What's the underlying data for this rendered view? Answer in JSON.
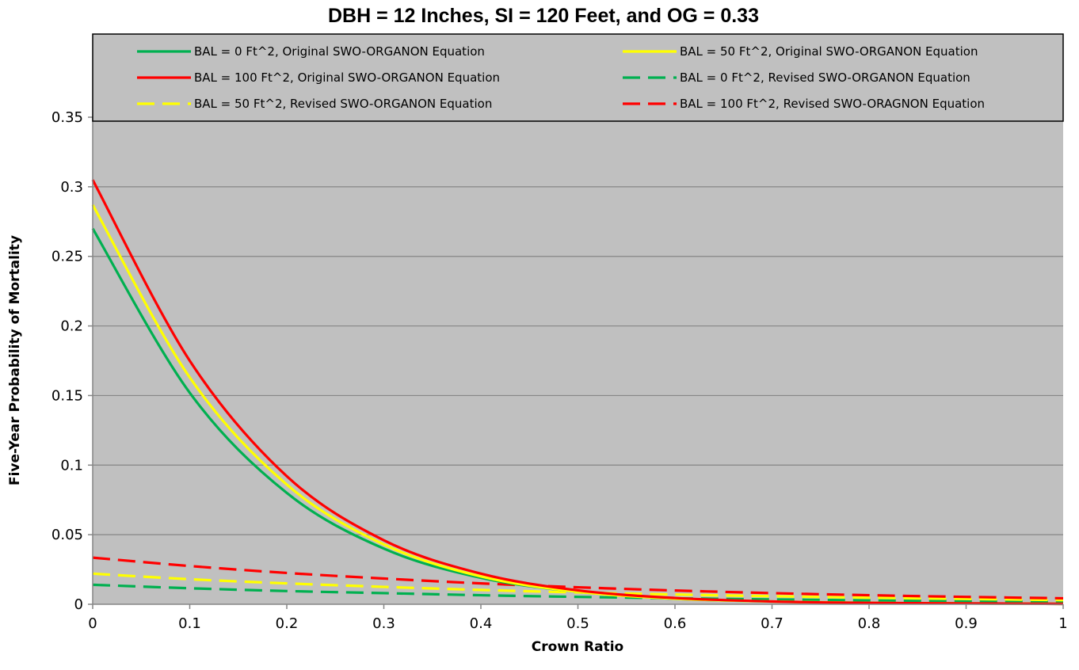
{
  "chart_data": {
    "type": "line",
    "title": "DBH = 12 Inches, SI = 120 Feet, and OG = 0.33",
    "xlabel": "Crown Ratio",
    "ylabel": "Five-Year Probability of Mortality",
    "xlim": [
      0,
      1
    ],
    "ylim": [
      0,
      0.35
    ],
    "xticks": [
      0,
      0.1,
      0.2,
      0.3,
      0.4,
      0.5,
      0.6,
      0.7,
      0.8,
      0.9,
      1
    ],
    "xtick_labels": [
      "0",
      "0.1",
      "0.2",
      "0.3",
      "0.4",
      "0.5",
      "0.6",
      "0.7",
      "0.8",
      "0.9",
      "1"
    ],
    "yticks": [
      0,
      0.05,
      0.1,
      0.15,
      0.2,
      0.25,
      0.3,
      0.35
    ],
    "ytick_labels": [
      "0",
      "0.05",
      "0.1",
      "0.15",
      "0.2",
      "0.25",
      "0.3",
      "0.35"
    ],
    "grid": "horizontal",
    "legend_placement": "top",
    "plot_background": "#c0c0c0",
    "x": [
      0,
      0.1,
      0.2,
      0.3,
      0.4,
      0.5,
      0.6,
      0.7,
      0.8,
      0.9,
      1.0
    ],
    "series": [
      {
        "name": "BAL = 0 Ft^2, Original SWO-ORGANON Equation",
        "color": "#00b050",
        "dash": "solid",
        "values": [
          0.27,
          0.152,
          0.08,
          0.04,
          0.019,
          0.009,
          0.004,
          0.002,
          0.001,
          0.0006,
          0.0003
        ]
      },
      {
        "name": "BAL = 50 Ft^2, Original SWO-ORGANON Equation",
        "color": "#ffff00",
        "dash": "solid",
        "values": [
          0.287,
          0.163,
          0.086,
          0.043,
          0.02,
          0.009,
          0.004,
          0.002,
          0.001,
          0.0006,
          0.0003
        ]
      },
      {
        "name": "BAL = 100 Ft^2, Original SWO-ORGANON Equation",
        "color": "#ff0000",
        "dash": "solid",
        "values": [
          0.305,
          0.175,
          0.092,
          0.046,
          0.022,
          0.01,
          0.0045,
          0.002,
          0.001,
          0.0006,
          0.0003
        ]
      },
      {
        "name": "BAL = 0 Ft^2, Revised SWO-ORGANON Equation",
        "color": "#00b050",
        "dash": "dashed",
        "values": [
          0.014,
          0.0115,
          0.0095,
          0.008,
          0.0065,
          0.0053,
          0.0043,
          0.0035,
          0.0028,
          0.0023,
          0.0019
        ]
      },
      {
        "name": "BAL = 50 Ft^2, Revised SWO-ORGANON Equation",
        "color": "#ffff00",
        "dash": "dashed",
        "values": [
          0.022,
          0.018,
          0.015,
          0.0125,
          0.0103,
          0.0085,
          0.007,
          0.0058,
          0.0047,
          0.0038,
          0.003
        ]
      },
      {
        "name": "BAL = 100 Ft^2, Revised SWO-ORAGNON Equation",
        "color": "#ff0000",
        "dash": "dashed",
        "values": [
          0.0335,
          0.0275,
          0.0225,
          0.0185,
          0.015,
          0.0122,
          0.0099,
          0.008,
          0.0065,
          0.0053,
          0.0043
        ]
      }
    ]
  }
}
